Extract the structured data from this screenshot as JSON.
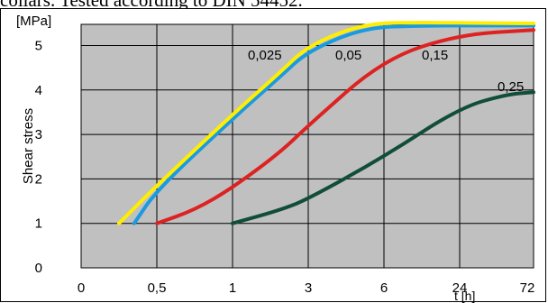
{
  "caption": "collars. Tested according to DIN 54452.",
  "chart_data": {
    "type": "line",
    "ylabel": "Shear  stress",
    "yunit": "[MPa]",
    "xunit": "t [h]",
    "xlabel": "",
    "ylim": [
      0,
      5.5
    ],
    "y_ticks": [
      "0",
      "1",
      "2",
      "3",
      "4",
      "5"
    ],
    "x_ticks": [
      "0",
      "0,5",
      "1",
      "3",
      "6",
      "24",
      "72"
    ],
    "grid": true,
    "series": [
      {
        "name": "0,025",
        "color": "#ffee00",
        "points": [
          [
            0.25,
            1.0
          ],
          [
            0.5,
            1.85
          ],
          [
            1,
            3.45
          ],
          [
            2,
            4.4
          ],
          [
            3,
            5.0
          ],
          [
            5,
            5.5
          ],
          [
            12,
            5.52
          ],
          [
            48,
            5.5
          ],
          [
            72,
            5.5
          ]
        ]
      },
      {
        "name": "0,05",
        "color": "#1a9ae0",
        "points": [
          [
            0.35,
            1.0
          ],
          [
            0.5,
            1.75
          ],
          [
            1,
            3.35
          ],
          [
            2,
            4.3
          ],
          [
            3,
            4.88
          ],
          [
            5,
            5.4
          ],
          [
            12,
            5.45
          ],
          [
            48,
            5.45
          ],
          [
            72,
            5.45
          ]
        ]
      },
      {
        "name": "0,15",
        "color": "#dd2222",
        "points": [
          [
            0.5,
            1.0
          ],
          [
            0.75,
            1.3
          ],
          [
            1,
            1.8
          ],
          [
            2,
            2.6
          ],
          [
            3,
            3.2
          ],
          [
            6,
            4.7
          ],
          [
            24,
            5.25
          ],
          [
            72,
            5.35
          ]
        ]
      },
      {
        "name": "0,25",
        "color": "#114d3a",
        "points": [
          [
            1,
            1.0
          ],
          [
            2,
            1.3
          ],
          [
            3,
            1.55
          ],
          [
            6,
            2.5
          ],
          [
            24,
            3.6
          ],
          [
            48,
            3.9
          ],
          [
            72,
            3.95
          ]
        ]
      }
    ]
  }
}
